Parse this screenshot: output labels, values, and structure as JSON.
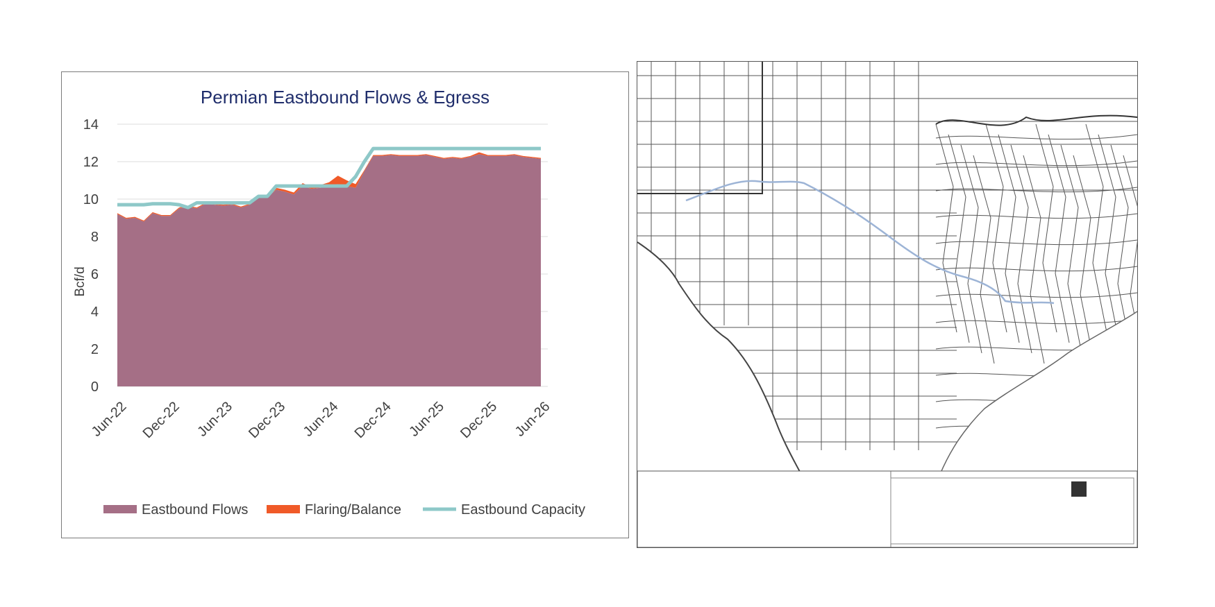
{
  "chart_data": {
    "type": "area",
    "title": "Permian Eastbound Flows & Egress",
    "ylabel": "Bcf/d",
    "xlabel": "",
    "ylim": [
      0,
      14
    ],
    "yticks": [
      0,
      2,
      4,
      6,
      8,
      10,
      12,
      14
    ],
    "xticks": [
      "Jun-22",
      "Dec-22",
      "Jun-23",
      "Dec-23",
      "Jun-24",
      "Dec-24",
      "Jun-25",
      "Dec-25",
      "Jun-26"
    ],
    "grid": true,
    "legend_position": "bottom",
    "x": [
      "Jun-22",
      "Jul-22",
      "Aug-22",
      "Sep-22",
      "Oct-22",
      "Nov-22",
      "Dec-22",
      "Jan-23",
      "Feb-23",
      "Mar-23",
      "Apr-23",
      "May-23",
      "Jun-23",
      "Jul-23",
      "Aug-23",
      "Sep-23",
      "Oct-23",
      "Nov-23",
      "Dec-23",
      "Jan-24",
      "Feb-24",
      "Mar-24",
      "Apr-24",
      "May-24",
      "Jun-24",
      "Jul-24",
      "Aug-24",
      "Sep-24",
      "Oct-24",
      "Nov-24",
      "Dec-24",
      "Jan-25",
      "Feb-25",
      "Mar-25",
      "Apr-25",
      "May-25",
      "Jun-25",
      "Jul-25",
      "Aug-25",
      "Sep-25",
      "Oct-25",
      "Nov-25",
      "Dec-25",
      "Jan-26",
      "Feb-26",
      "Mar-26",
      "Apr-26",
      "May-26",
      "Jun-26"
    ],
    "series": [
      {
        "name": "Eastbound Flows",
        "kind": "stacked-area",
        "color": "#a56f86",
        "values": [
          9.2,
          8.95,
          9.0,
          8.8,
          9.25,
          9.1,
          9.1,
          9.5,
          9.6,
          9.5,
          9.75,
          9.7,
          9.65,
          9.7,
          9.55,
          9.7,
          10.1,
          10.1,
          10.5,
          10.4,
          10.25,
          10.7,
          10.55,
          10.6,
          10.7,
          10.8,
          10.7,
          10.6,
          11.5,
          12.3,
          12.3,
          12.35,
          12.3,
          12.3,
          12.3,
          12.35,
          12.25,
          12.15,
          12.2,
          12.15,
          12.25,
          12.4,
          12.3,
          12.3,
          12.3,
          12.35,
          12.25,
          12.2,
          12.15
        ]
      },
      {
        "name": "Flaring/Balance",
        "kind": "stacked-area",
        "color": "#f05a28",
        "values": [
          0.05,
          0.05,
          0.05,
          0.05,
          0.05,
          0.05,
          0.05,
          0.05,
          0.05,
          0.05,
          0.05,
          0.05,
          0.05,
          0.05,
          0.05,
          0.05,
          0.05,
          0.05,
          0.1,
          0.1,
          0.1,
          0.15,
          0.1,
          0.15,
          0.2,
          0.45,
          0.3,
          0.2,
          0.05,
          0.05,
          0.05,
          0.05,
          0.05,
          0.05,
          0.05,
          0.05,
          0.05,
          0.05,
          0.05,
          0.05,
          0.05,
          0.1,
          0.05,
          0.05,
          0.05,
          0.05,
          0.05,
          0.05,
          0.05
        ]
      },
      {
        "name": "Eastbound Capacity",
        "kind": "line",
        "color": "#8ec8c8",
        "values": [
          9.7,
          9.7,
          9.7,
          9.7,
          9.75,
          9.75,
          9.75,
          9.7,
          9.55,
          9.8,
          9.8,
          9.8,
          9.8,
          9.8,
          9.8,
          9.8,
          10.15,
          10.15,
          10.7,
          10.7,
          10.7,
          10.7,
          10.7,
          10.7,
          10.7,
          10.7,
          10.7,
          11.2,
          12.0,
          12.7,
          12.7,
          12.7,
          12.7,
          12.7,
          12.7,
          12.7,
          12.7,
          12.7,
          12.7,
          12.7,
          12.7,
          12.7,
          12.7,
          12.7,
          12.7,
          12.7,
          12.7,
          12.7,
          12.7
        ]
      }
    ]
  },
  "legend": {
    "items": [
      {
        "label": "Eastbound Flows",
        "color": "#a56f86",
        "marker": "box"
      },
      {
        "label": "Flaring/Balance",
        "color": "#f05a28",
        "marker": "box"
      },
      {
        "label": "Eastbound Capacity",
        "color": "#8ec8c8",
        "marker": "line"
      }
    ]
  },
  "map": {
    "description_icon": "county-map-of-texas-with-pipeline-route",
    "route_color": "#9db4d6",
    "border_color": "#333333"
  }
}
